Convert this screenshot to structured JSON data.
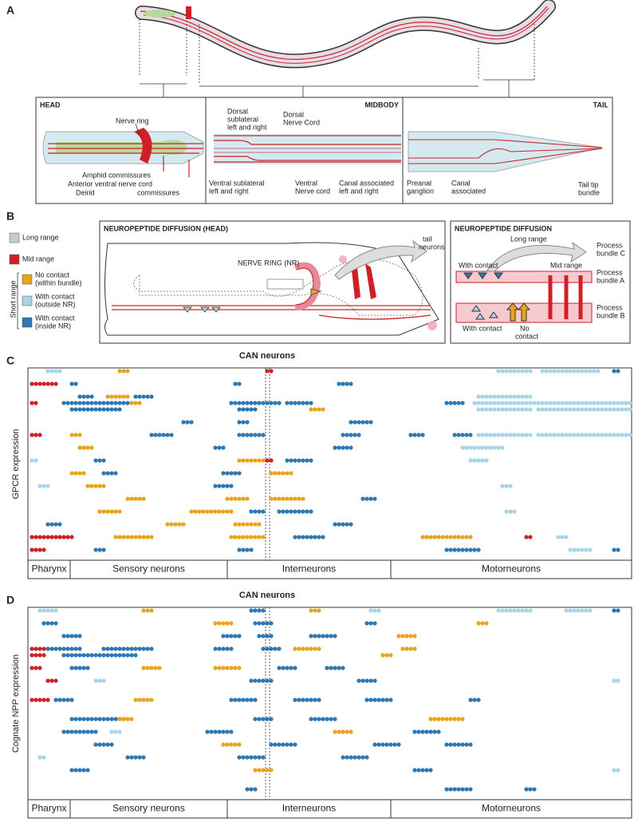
{
  "panel_a": {
    "label": "A",
    "head": {
      "title": "HEAD",
      "nerve_ring": "Nerve ring",
      "amphid": "Amphid commissures",
      "avnc": "Anterior ventral nerve cord",
      "deirid": "Deirid",
      "commissures": "commissures"
    },
    "midbody": {
      "title": "MIDBODY",
      "dorsal_sublateral": [
        "Dorsal",
        "sublateral",
        "left and right"
      ],
      "dorsal_cord": [
        "Dorsal",
        "Nerve Cord"
      ],
      "ventral_sublateral": [
        "Ventral sublateral",
        "left and right"
      ],
      "ventral_cord": [
        "Ventral",
        "Nerve cord"
      ],
      "canal": [
        "Canal associated",
        "left and right"
      ]
    },
    "tail": {
      "title": "TAIL",
      "preanal": [
        "Preanal",
        "ganglion"
      ],
      "canal": [
        "Canal",
        "associated"
      ],
      "tip": [
        "Tail tip",
        "bundle"
      ]
    }
  },
  "panel_b": {
    "label": "B",
    "legend": [
      {
        "label": [
          "Long range"
        ],
        "color": "#c9c9c9"
      },
      {
        "label": [
          "Mid range"
        ],
        "color": "#cf2027"
      },
      {
        "label": [
          "No contact",
          "(within bundle)"
        ],
        "color": "#e9a41c"
      },
      {
        "label": [
          "With contact",
          "(outside NR)"
        ],
        "color": "#a8d4e8"
      },
      {
        "label": [
          "With contact",
          "(inside NR)"
        ],
        "color": "#2d78b4"
      }
    ],
    "short_range": "Short range",
    "head_title": "NEUROPEPTIDE DIFFUSION (HEAD)",
    "nerve_ring": "NERVE RING (NR)",
    "tail_neurons": [
      "tail",
      "neurons"
    ],
    "right_title": "NEUROPEPTIDE DIFFUSION",
    "long_range": "Long range",
    "with_contact_top": "With contact",
    "mid_range": "Mid range",
    "bundle_c": [
      "Process",
      "bundle C"
    ],
    "bundle_a": [
      "Process",
      "bundle A"
    ],
    "bundle_b": [
      "Process",
      "bundle B"
    ],
    "with_contact_bottom": "With contact",
    "no_contact": [
      "No",
      "contact"
    ]
  },
  "panel_c": {
    "label": "C",
    "title": "CAN neurons",
    "ylabel": "GPCR expression",
    "groups": [
      "Pharynx",
      "Sensory neurons",
      "Interneurons",
      "Motorneurons"
    ],
    "segments": [
      [
        3,
        0,
        4,
        7
      ],
      [
        2,
        0,
        22,
        24
      ],
      [
        1,
        0,
        59,
        60
      ],
      [
        3,
        0,
        117,
        125
      ],
      [
        3,
        0,
        128,
        142
      ],
      [
        4,
        0,
        146,
        147
      ],
      [
        1,
        2,
        0,
        6
      ],
      [
        4,
        2,
        10,
        11
      ],
      [
        4,
        2,
        51,
        52
      ],
      [
        4,
        2,
        77,
        80
      ],
      [
        4,
        4,
        12,
        15
      ],
      [
        2,
        4,
        19,
        24
      ],
      [
        4,
        4,
        26,
        30
      ],
      [
        3,
        4,
        112,
        125
      ],
      [
        1,
        5,
        0,
        1
      ],
      [
        4,
        5,
        8,
        24
      ],
      [
        2,
        5,
        25,
        27
      ],
      [
        4,
        5,
        50,
        62
      ],
      [
        4,
        5,
        64,
        70
      ],
      [
        4,
        5,
        104,
        108
      ],
      [
        3,
        5,
        111,
        150
      ],
      [
        4,
        6,
        10,
        22
      ],
      [
        4,
        6,
        52,
        56
      ],
      [
        2,
        6,
        70,
        73
      ],
      [
        3,
        6,
        112,
        125
      ],
      [
        3,
        6,
        127,
        150
      ],
      [
        4,
        8,
        38,
        40
      ],
      [
        4,
        8,
        52,
        54
      ],
      [
        4,
        8,
        80,
        85
      ],
      [
        1,
        10,
        0,
        2
      ],
      [
        2,
        10,
        10,
        12
      ],
      [
        4,
        10,
        30,
        35
      ],
      [
        4,
        10,
        52,
        58
      ],
      [
        4,
        10,
        78,
        82
      ],
      [
        4,
        10,
        95,
        98
      ],
      [
        4,
        10,
        106,
        110
      ],
      [
        3,
        10,
        112,
        125
      ],
      [
        3,
        10,
        127,
        150
      ],
      [
        2,
        12,
        12,
        15
      ],
      [
        4,
        12,
        46,
        48
      ],
      [
        4,
        12,
        76,
        80
      ],
      [
        3,
        12,
        108,
        118
      ],
      [
        3,
        14,
        0,
        1
      ],
      [
        4,
        14,
        16,
        18
      ],
      [
        2,
        14,
        52,
        58
      ],
      [
        1,
        14,
        59,
        60
      ],
      [
        4,
        14,
        64,
        70
      ],
      [
        3,
        14,
        110,
        114
      ],
      [
        2,
        16,
        10,
        13
      ],
      [
        4,
        16,
        18,
        21
      ],
      [
        4,
        16,
        48,
        52
      ],
      [
        2,
        16,
        60,
        65
      ],
      [
        3,
        18,
        2,
        4
      ],
      [
        2,
        18,
        14,
        18
      ],
      [
        4,
        18,
        46,
        50
      ],
      [
        3,
        18,
        118,
        120
      ],
      [
        2,
        20,
        24,
        28
      ],
      [
        2,
        20,
        49,
        54
      ],
      [
        2,
        20,
        60,
        68
      ],
      [
        4,
        20,
        83,
        86
      ],
      [
        2,
        22,
        17,
        22
      ],
      [
        2,
        22,
        40,
        50
      ],
      [
        4,
        22,
        55,
        58
      ],
      [
        4,
        22,
        62,
        70
      ],
      [
        3,
        22,
        119,
        121
      ],
      [
        4,
        24,
        4,
        7
      ],
      [
        2,
        24,
        34,
        38
      ],
      [
        2,
        24,
        51,
        57
      ],
      [
        4,
        24,
        76,
        80
      ],
      [
        1,
        26,
        0,
        10
      ],
      [
        2,
        26,
        21,
        30
      ],
      [
        2,
        26,
        50,
        58
      ],
      [
        4,
        26,
        66,
        73
      ],
      [
        2,
        26,
        98,
        110
      ],
      [
        1,
        26,
        124,
        125
      ],
      [
        3,
        26,
        132,
        134
      ],
      [
        1,
        28,
        0,
        3
      ],
      [
        4,
        28,
        16,
        18
      ],
      [
        4,
        28,
        52,
        55
      ],
      [
        4,
        28,
        104,
        112
      ],
      [
        3,
        28,
        135,
        140
      ],
      [
        4,
        28,
        146,
        147
      ]
    ]
  },
  "panel_d": {
    "label": "D",
    "title": "CAN neurons",
    "ylabel": "Cognate NPP expression",
    "groups": [
      "Pharynx",
      "Sensory neurons",
      "Interneurons",
      "Motorneurons"
    ],
    "segments": [
      [
        3,
        0,
        2,
        6
      ],
      [
        2,
        0,
        28,
        30
      ],
      [
        4,
        0,
        55,
        58
      ],
      [
        2,
        0,
        70,
        72
      ],
      [
        3,
        0,
        85,
        87
      ],
      [
        3,
        0,
        117,
        125
      ],
      [
        3,
        0,
        134,
        140
      ],
      [
        4,
        0,
        146,
        147
      ],
      [
        4,
        2,
        3,
        6
      ],
      [
        2,
        2,
        46,
        50
      ],
      [
        4,
        2,
        56,
        60
      ],
      [
        4,
        2,
        84,
        86
      ],
      [
        2,
        2,
        112,
        114
      ],
      [
        4,
        4,
        8,
        12
      ],
      [
        4,
        4,
        48,
        52
      ],
      [
        4,
        4,
        57,
        60
      ],
      [
        4,
        4,
        70,
        76
      ],
      [
        2,
        4,
        92,
        96
      ],
      [
        1,
        6,
        0,
        3
      ],
      [
        4,
        6,
        4,
        12
      ],
      [
        4,
        6,
        18,
        30
      ],
      [
        4,
        6,
        46,
        50
      ],
      [
        4,
        6,
        58,
        62
      ],
      [
        2,
        6,
        66,
        72
      ],
      [
        2,
        6,
        93,
        96
      ],
      [
        1,
        7,
        0,
        3
      ],
      [
        4,
        7,
        8,
        26
      ],
      [
        2,
        7,
        88,
        90
      ],
      [
        1,
        9,
        0,
        2
      ],
      [
        4,
        9,
        10,
        14
      ],
      [
        2,
        9,
        28,
        32
      ],
      [
        2,
        9,
        46,
        52
      ],
      [
        4,
        9,
        62,
        66
      ],
      [
        4,
        9,
        74,
        78
      ],
      [
        1,
        11,
        4,
        6
      ],
      [
        3,
        11,
        16,
        18
      ],
      [
        4,
        11,
        55,
        60
      ],
      [
        4,
        11,
        82,
        86
      ],
      [
        3,
        11,
        146,
        147
      ],
      [
        1,
        14,
        0,
        4
      ],
      [
        4,
        14,
        6,
        10
      ],
      [
        2,
        14,
        26,
        30
      ],
      [
        4,
        14,
        50,
        56
      ],
      [
        4,
        14,
        66,
        72
      ],
      [
        4,
        14,
        84,
        90
      ],
      [
        4,
        14,
        110,
        112
      ],
      [
        4,
        17,
        10,
        24
      ],
      [
        2,
        17,
        22,
        25
      ],
      [
        4,
        17,
        56,
        60
      ],
      [
        4,
        17,
        70,
        76
      ],
      [
        2,
        17,
        100,
        108
      ],
      [
        4,
        19,
        8,
        16
      ],
      [
        3,
        19,
        20,
        22
      ],
      [
        4,
        19,
        44,
        50
      ],
      [
        2,
        19,
        76,
        80
      ],
      [
        4,
        19,
        96,
        102
      ],
      [
        4,
        21,
        16,
        20
      ],
      [
        2,
        21,
        48,
        52
      ],
      [
        4,
        21,
        60,
        66
      ],
      [
        4,
        21,
        86,
        92
      ],
      [
        4,
        21,
        104,
        110
      ],
      [
        3,
        23,
        2,
        3
      ],
      [
        4,
        23,
        24,
        28
      ],
      [
        4,
        23,
        52,
        58
      ],
      [
        4,
        23,
        78,
        84
      ],
      [
        4,
        25,
        10,
        14
      ],
      [
        2,
        25,
        56,
        60
      ],
      [
        4,
        25,
        96,
        100
      ],
      [
        3,
        25,
        146,
        147
      ],
      [
        4,
        28,
        54,
        56
      ],
      [
        4,
        28,
        104,
        110
      ],
      [
        4,
        28,
        124,
        126
      ]
    ]
  }
}
